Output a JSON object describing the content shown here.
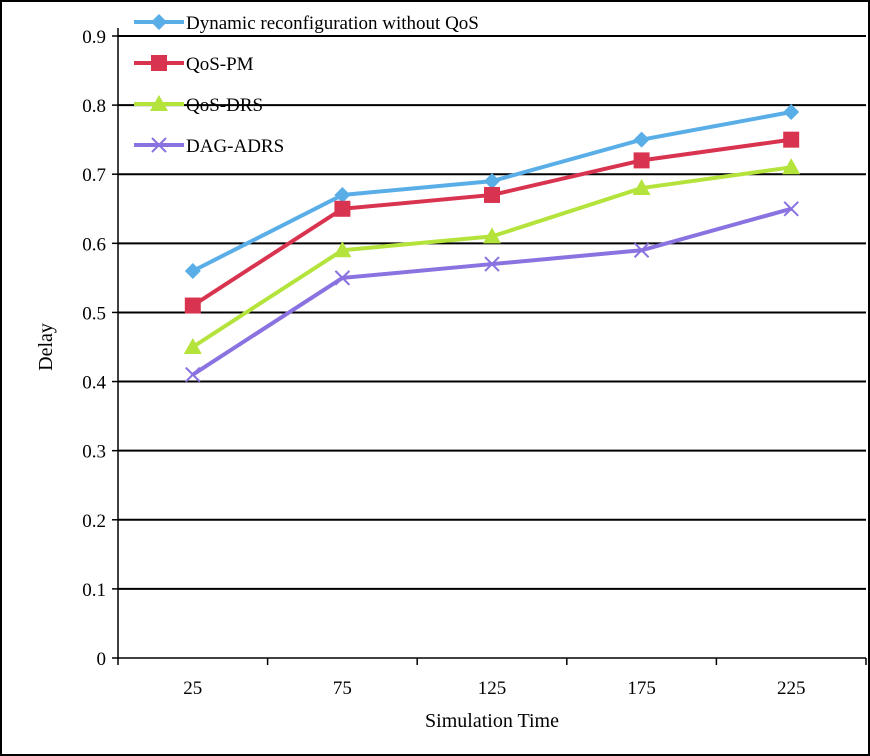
{
  "chart_data": {
    "type": "line",
    "title": "",
    "xlabel": "Simulation Time",
    "ylabel": "Delay",
    "categories": [
      "25",
      "75",
      "125",
      "175",
      "225"
    ],
    "ylim": [
      0,
      0.9
    ],
    "yticks": [
      "0",
      "0.1",
      "0.2",
      "0.3",
      "0.4",
      "0.5",
      "0.6",
      "0.7",
      "0.8",
      "0.9"
    ],
    "grid": "horizontal",
    "legend_position": "top-left",
    "series": [
      {
        "name": "Dynamic reconfiguration without QoS",
        "marker": "diamond",
        "color": "#5aaee8",
        "values": [
          0.56,
          0.67,
          0.69,
          0.75,
          0.79
        ]
      },
      {
        "name": "QoS-PM",
        "marker": "square",
        "color": "#d9344f",
        "values": [
          0.51,
          0.65,
          0.67,
          0.72,
          0.75
        ]
      },
      {
        "name": "QoS-DRS",
        "marker": "triangle",
        "color": "#b4e33c",
        "values": [
          0.45,
          0.59,
          0.61,
          0.68,
          0.71
        ]
      },
      {
        "name": "DAG-ADRS",
        "marker": "x",
        "color": "#8a72e0",
        "values": [
          0.41,
          0.55,
          0.57,
          0.59,
          0.65
        ]
      }
    ]
  }
}
